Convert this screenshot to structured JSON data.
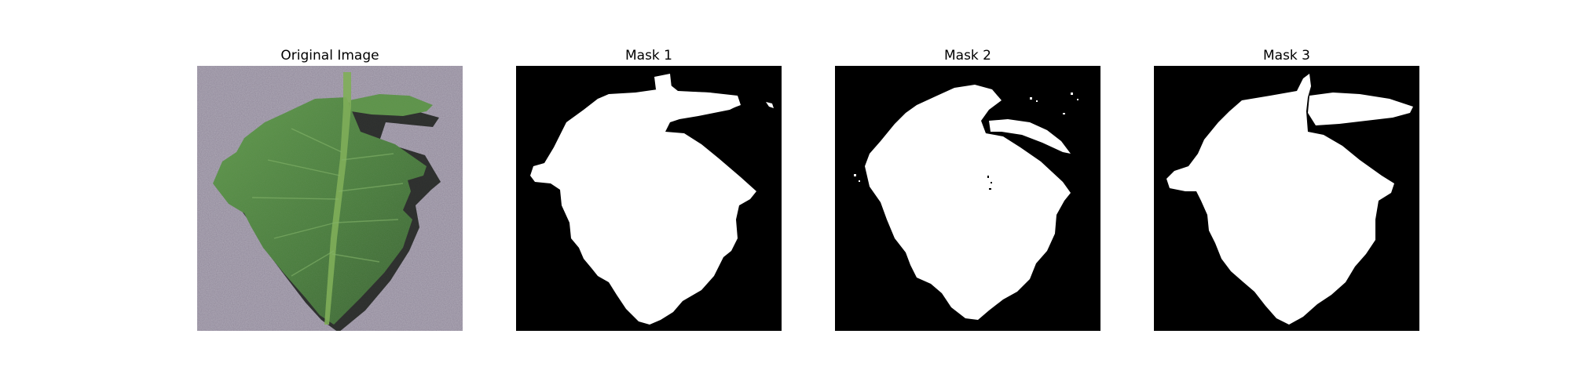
{
  "panels": [
    {
      "title": "Original Image"
    },
    {
      "title": "Mask 1"
    },
    {
      "title": "Mask 2"
    },
    {
      "title": "Mask 3"
    }
  ],
  "colors": {
    "mask_background": "#000000",
    "mask_foreground": "#ffffff",
    "photo_background": "#8f8799",
    "leaf_dark": "#2f5a28",
    "leaf_mid": "#4e8a3e",
    "leaf_light": "#6aa24f",
    "leaf_shadow": "#1b2a1a",
    "stem": "#6b9d4a"
  }
}
